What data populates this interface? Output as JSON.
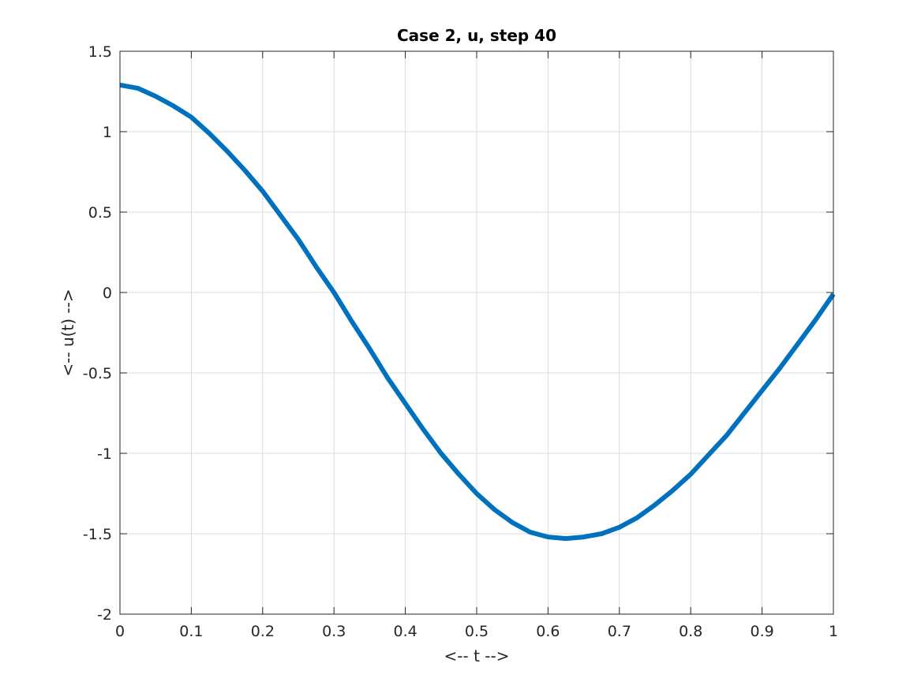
{
  "chart_data": {
    "type": "line",
    "title": "Case 2, u, step 40",
    "xlabel": "<-- t -->",
    "ylabel": "<-- u(t) -->",
    "xlim": [
      0,
      1
    ],
    "ylim": [
      -2,
      1.5
    ],
    "xticks": [
      0,
      0.1,
      0.2,
      0.3,
      0.4,
      0.5,
      0.6,
      0.7,
      0.8,
      0.9,
      1
    ],
    "xtick_labels": [
      "0",
      "0.1",
      "0.2",
      "0.3",
      "0.4",
      "0.5",
      "0.6",
      "0.7",
      "0.8",
      "0.9",
      "1"
    ],
    "yticks": [
      -2,
      -1.5,
      -1,
      -0.5,
      0,
      0.5,
      1,
      1.5
    ],
    "ytick_labels": [
      "-2",
      "-1.5",
      "-1",
      "-0.5",
      "0",
      "0.5",
      "1",
      "1.5"
    ],
    "grid": true,
    "series": [
      {
        "color": "#0072bd",
        "x": [
          0,
          0.025,
          0.05,
          0.075,
          0.1,
          0.125,
          0.15,
          0.175,
          0.2,
          0.225,
          0.25,
          0.275,
          0.3,
          0.325,
          0.35,
          0.375,
          0.4,
          0.425,
          0.45,
          0.475,
          0.5,
          0.525,
          0.55,
          0.575,
          0.6,
          0.625,
          0.65,
          0.675,
          0.7,
          0.725,
          0.75,
          0.775,
          0.8,
          0.825,
          0.85,
          0.875,
          0.9,
          0.925,
          0.95,
          0.975,
          1
        ],
        "y": [
          1.29,
          1.27,
          1.22,
          1.16,
          1.09,
          0.99,
          0.88,
          0.76,
          0.63,
          0.48,
          0.33,
          0.16,
          0.0,
          -0.18,
          -0.35,
          -0.53,
          -0.69,
          -0.85,
          -1.0,
          -1.13,
          -1.25,
          -1.35,
          -1.43,
          -1.49,
          -1.52,
          -1.53,
          -1.52,
          -1.5,
          -1.46,
          -1.4,
          -1.32,
          -1.23,
          -1.13,
          -1.01,
          -0.89,
          -0.75,
          -0.61,
          -0.47,
          -0.32,
          -0.17,
          -0.01
        ]
      }
    ]
  }
}
